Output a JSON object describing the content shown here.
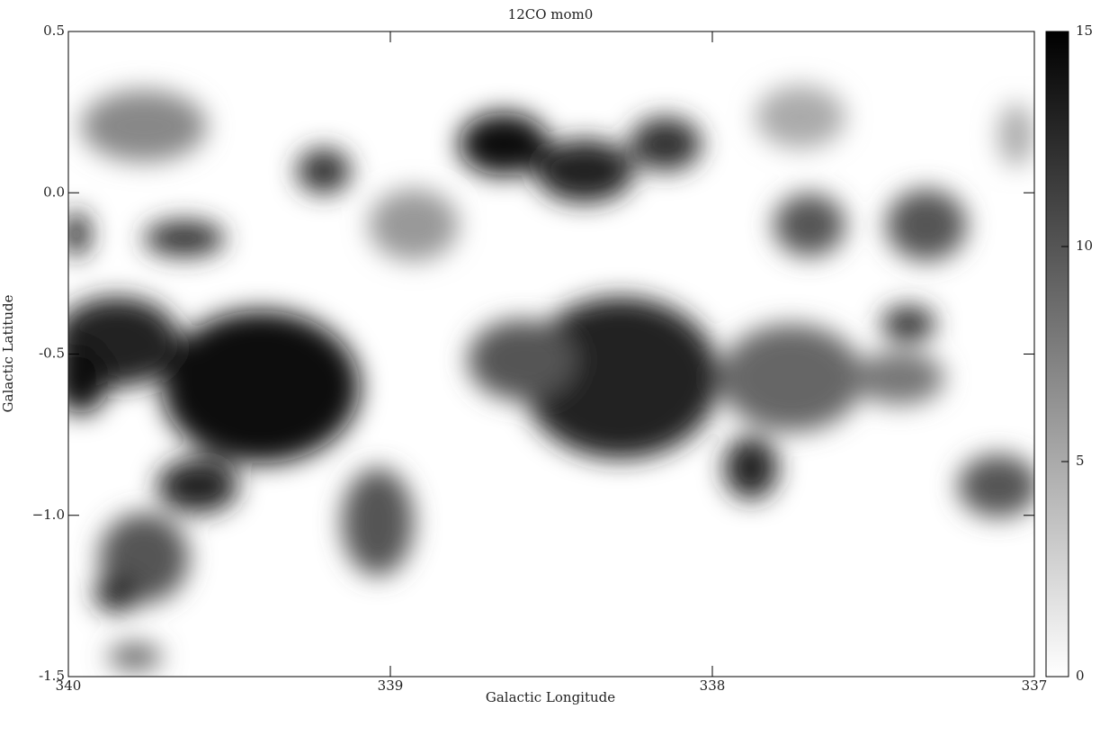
{
  "chart_data": {
    "type": "image",
    "title": "12CO mom0",
    "xlabel": "Galactic Longitude",
    "ylabel": "Galactic Latitude",
    "xlim": [
      340,
      337
    ],
    "xticks": [
      340,
      339,
      338,
      337
    ],
    "ylim": [
      -1.5,
      0.5
    ],
    "yticks": [
      0.5,
      {
        "value": 0,
        "label": "0.0"
      },
      -0.5,
      {
        "value": -1,
        "label": "−1.0"
      },
      -1.5
    ],
    "colorbar_lim": [
      0,
      15
    ],
    "colorbar_ticks": [
      0,
      5,
      10,
      15
    ]
  }
}
